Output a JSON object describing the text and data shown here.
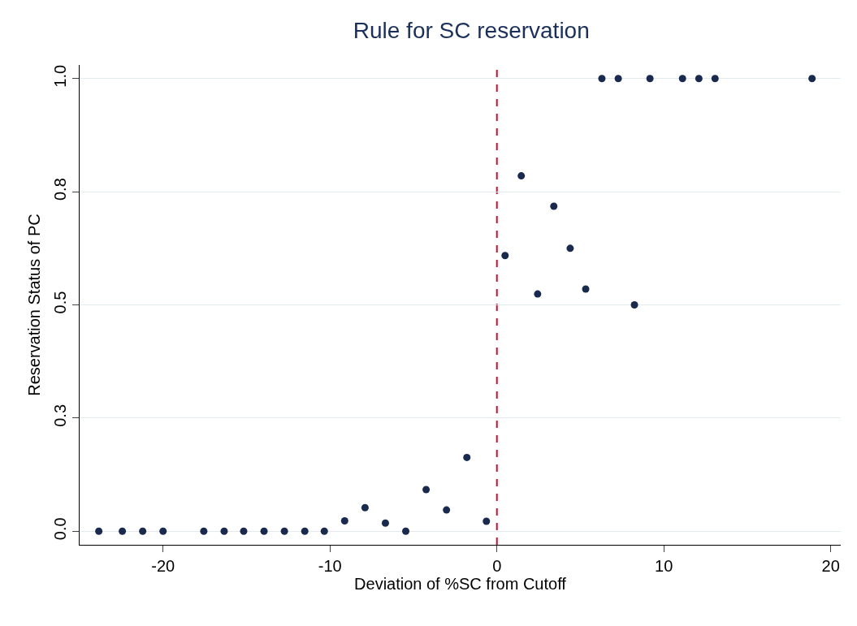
{
  "chart_data": {
    "type": "scatter",
    "title": "Rule for SC reservation",
    "xlabel": "Deviation of %SC from Cutoff",
    "ylabel": "Reservation Status of PC",
    "x": [
      -23.85,
      -22.44,
      -21.22,
      -20.0,
      -17.56,
      -16.34,
      -15.17,
      -13.95,
      -12.73,
      -11.51,
      -10.34,
      -9.12,
      -7.9,
      -6.68,
      -5.46,
      -4.24,
      -3.02,
      -1.8,
      -0.63,
      0.49,
      1.46,
      2.44,
      3.41,
      4.39,
      5.32,
      6.29,
      7.27,
      8.24,
      9.17,
      11.12,
      12.1,
      13.07,
      18.88
    ],
    "series": [
      {
        "color": "#1a2a4e",
        "values": [
          0,
          0,
          0,
          0,
          0,
          0,
          0,
          0,
          0,
          0,
          0,
          0.023,
          0.052,
          0.018,
          0,
          0.092,
          0.047,
          0.163,
          0.022,
          0.609,
          0.785,
          0.524,
          0.718,
          0.625,
          0.535,
          1,
          1,
          0.5,
          1,
          1,
          1,
          1,
          1
        ]
      }
    ],
    "xlim": [
      -25,
      20.6
    ],
    "ylim": [
      -0.03,
      1.03
    ],
    "xticks": [
      -20,
      -10,
      0,
      10,
      20
    ],
    "yticks": [
      {
        "value": 0,
        "label": "0.0"
      },
      {
        "value": 0.25,
        "label": "0.3"
      },
      {
        "value": 0.5,
        "label": "0.5"
      },
      {
        "value": 0.75,
        "label": "0.8"
      },
      {
        "value": 1,
        "label": "1.0"
      }
    ],
    "grid": "y",
    "marker": "circle",
    "ref_lines": [
      {
        "axis": "x",
        "value": 0,
        "color": "#c8102e",
        "line_style": "dashed"
      }
    ]
  }
}
